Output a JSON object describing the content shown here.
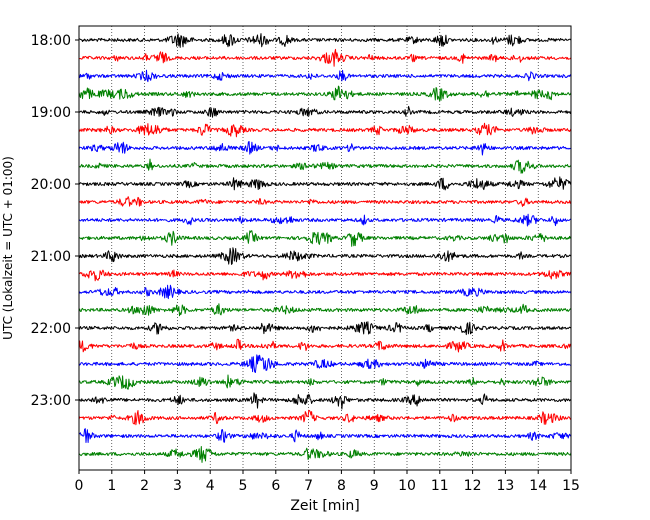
{
  "chart_data": {
    "type": "line",
    "title": "",
    "xlabel": "Zeit  [min]",
    "ylabel": "UTC (Lokalzeit = UTC + 01:00)",
    "xlim": [
      0,
      15
    ],
    "x_ticks": [
      "0",
      "1",
      "2",
      "3",
      "4",
      "5",
      "6",
      "7",
      "8",
      "9",
      "10",
      "11",
      "12",
      "13",
      "14",
      "15"
    ],
    "y_ticks": [
      "18:00",
      "19:00",
      "20:00",
      "21:00",
      "22:00",
      "23:00"
    ],
    "grid": {
      "x": true,
      "y": false,
      "style": "dotted"
    },
    "trace_interval_minutes": 15,
    "rows": [
      {
        "time": "18:00",
        "color": "#000000"
      },
      {
        "time": "18:15",
        "color": "#ff0000"
      },
      {
        "time": "18:30",
        "color": "#0000ff"
      },
      {
        "time": "18:45",
        "color": "#008000"
      },
      {
        "time": "19:00",
        "color": "#000000"
      },
      {
        "time": "19:15",
        "color": "#ff0000"
      },
      {
        "time": "19:30",
        "color": "#0000ff"
      },
      {
        "time": "19:45",
        "color": "#008000"
      },
      {
        "time": "20:00",
        "color": "#000000"
      },
      {
        "time": "20:15",
        "color": "#ff0000"
      },
      {
        "time": "20:30",
        "color": "#0000ff"
      },
      {
        "time": "20:45",
        "color": "#008000"
      },
      {
        "time": "21:00",
        "color": "#000000"
      },
      {
        "time": "21:15",
        "color": "#ff0000"
      },
      {
        "time": "21:30",
        "color": "#0000ff"
      },
      {
        "time": "21:45",
        "color": "#008000"
      },
      {
        "time": "22:00",
        "color": "#000000"
      },
      {
        "time": "22:15",
        "color": "#ff0000"
      },
      {
        "time": "22:30",
        "color": "#0000ff"
      },
      {
        "time": "22:45",
        "color": "#008000"
      },
      {
        "time": "23:00",
        "color": "#000000"
      },
      {
        "time": "23:15",
        "color": "#ff0000"
      },
      {
        "time": "23:30",
        "color": "#0000ff"
      },
      {
        "time": "23:45",
        "color": "#008000"
      }
    ]
  }
}
